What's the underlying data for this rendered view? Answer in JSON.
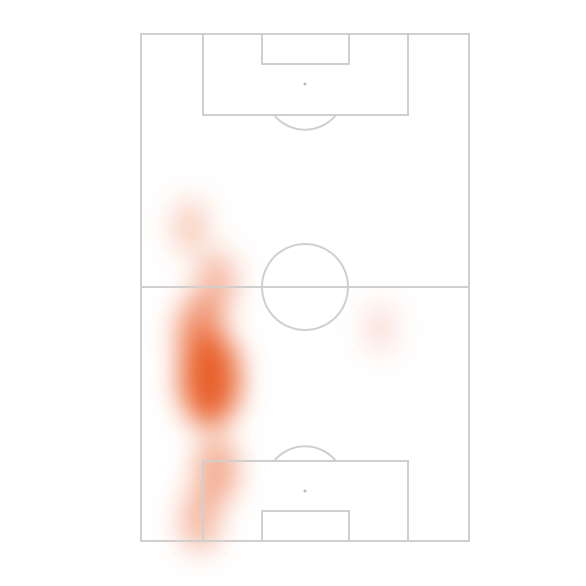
{
  "chart_data": {
    "type": "heatmap",
    "color": "#e8602c",
    "xlim": [
      0,
      100
    ],
    "ylim": [
      0,
      100
    ],
    "x": [
      21,
      18,
      23,
      15,
      23,
      18,
      73
    ],
    "y": [
      68,
      59,
      49,
      38,
      86,
      96,
      58
    ],
    "values": [
      100,
      60,
      35,
      20,
      45,
      35,
      8
    ]
  }
}
